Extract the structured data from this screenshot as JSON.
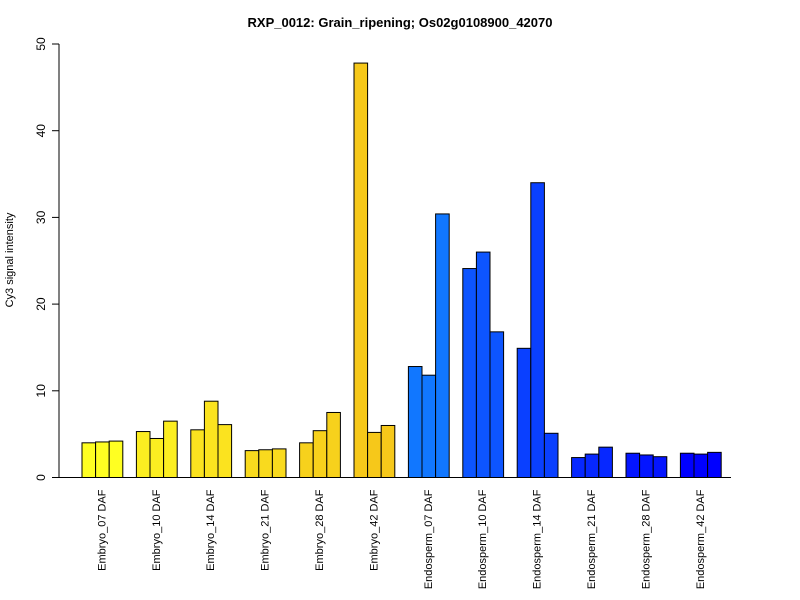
{
  "chart_data": {
    "type": "bar",
    "title": "RXP_0012: Grain_ripening; Os02g0108900_42070",
    "xlabel": "",
    "ylabel": "Cy3 signal intensity",
    "ylim": [
      0,
      50
    ],
    "yticks": [
      0,
      10,
      20,
      30,
      40,
      50
    ],
    "grid": false,
    "legend": "none",
    "bars_per_group": 3,
    "groups": [
      {
        "label": "Embryo_07 DAF",
        "values": [
          4.0,
          4.1,
          4.2
        ],
        "color": "#FFFF22"
      },
      {
        "label": "Embryo_10 DAF",
        "values": [
          5.3,
          4.5,
          6.5
        ],
        "color": "#FCEE21"
      },
      {
        "label": "Embryo_14 DAF",
        "values": [
          5.5,
          8.8,
          6.1
        ],
        "color": "#FBE31F"
      },
      {
        "label": "Embryo_21 DAF",
        "values": [
          3.1,
          3.2,
          3.3
        ],
        "color": "#F9DA1E"
      },
      {
        "label": "Embryo_28 DAF",
        "values": [
          4.0,
          5.4,
          7.5
        ],
        "color": "#F7D11C"
      },
      {
        "label": "Embryo_42 DAF",
        "values": [
          47.8,
          5.2,
          6.0
        ],
        "color": "#F6C81A"
      },
      {
        "label": "Endosperm_07 DAF",
        "values": [
          12.8,
          11.8,
          30.4
        ],
        "color": "#1177FF"
      },
      {
        "label": "Endosperm_10 DAF",
        "values": [
          24.1,
          26.0,
          16.8
        ],
        "color": "#0D55FF"
      },
      {
        "label": "Endosperm_14 DAF",
        "values": [
          14.9,
          34.0,
          5.1
        ],
        "color": "#0A40FF"
      },
      {
        "label": "Endosperm_21 DAF",
        "values": [
          2.3,
          2.7,
          3.5
        ],
        "color": "#0728FF"
      },
      {
        "label": "Endosperm_28 DAF",
        "values": [
          2.8,
          2.6,
          2.4
        ],
        "color": "#0415FF"
      },
      {
        "label": "Endosperm_42 DAF",
        "values": [
          2.8,
          2.7,
          2.9
        ],
        "color": "#0000FF"
      }
    ]
  }
}
